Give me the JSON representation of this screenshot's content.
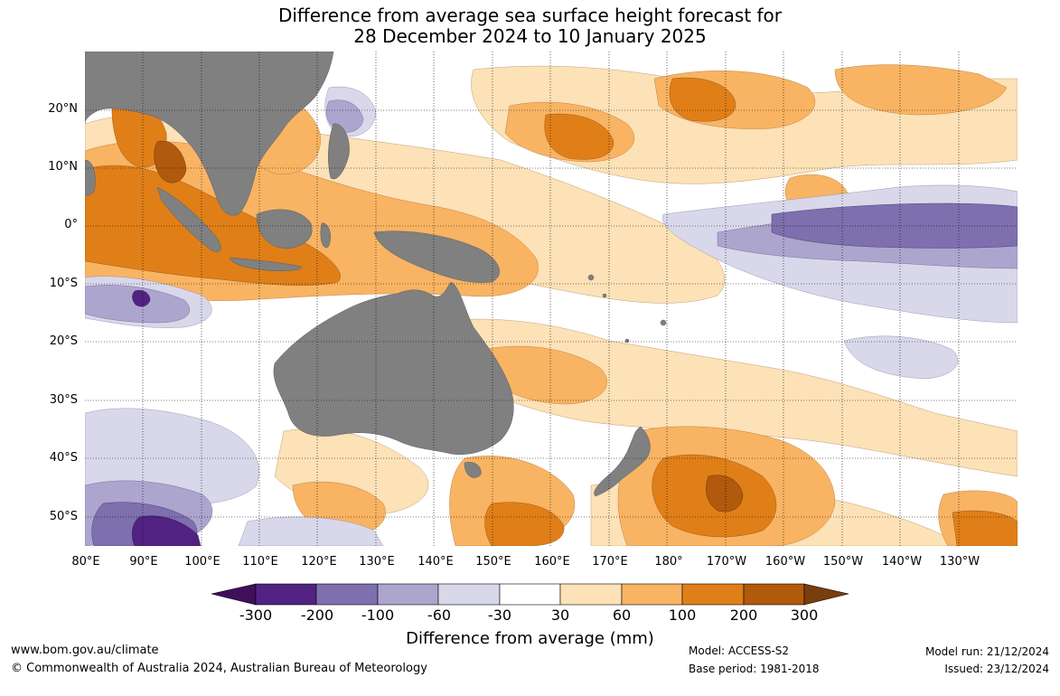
{
  "title": {
    "line1": "Difference from average sea surface height forecast for",
    "line2": "28 December 2024 to 10 January 2025"
  },
  "map": {
    "land_color": "#808080",
    "lat_labels": [
      "20°N",
      "10°N",
      "0°",
      "10°S",
      "20°S",
      "30°S",
      "40°S",
      "50°S"
    ],
    "lon_labels": [
      "80°E",
      "90°E",
      "100°E",
      "110°E",
      "120°E",
      "130°E",
      "140°E",
      "150°E",
      "160°E",
      "170°E",
      "180°",
      "170°W",
      "160°W",
      "150°W",
      "140°W",
      "130°W"
    ]
  },
  "legend": {
    "title": "Difference from average (mm)",
    "ticks": [
      "-300",
      "-200",
      "-100",
      "-60",
      "-30",
      "30",
      "60",
      "100",
      "200",
      "300"
    ],
    "colors": {
      "below_min": "#3f0f5c",
      "b1": "#522282",
      "b2": "#7e6fae",
      "b3": "#aca5ce",
      "b4": "#d8d8ea",
      "b5": "#ffffff",
      "b6": "#fde1b7",
      "b7": "#f8b463",
      "b8": "#e07f18",
      "b9": "#b1590c",
      "above_max": "#7a3d0c"
    }
  },
  "footer": {
    "url": "www.bom.gov.au/climate",
    "copyright": "© Commonwealth of Australia 2024, Australian Bureau of Meteorology",
    "model": "Model: ACCESS-S2",
    "base_period": "Base period: 1981-2018",
    "model_run": "Model run: 21/12/2024",
    "issued": "Issued: 23/12/2024"
  }
}
